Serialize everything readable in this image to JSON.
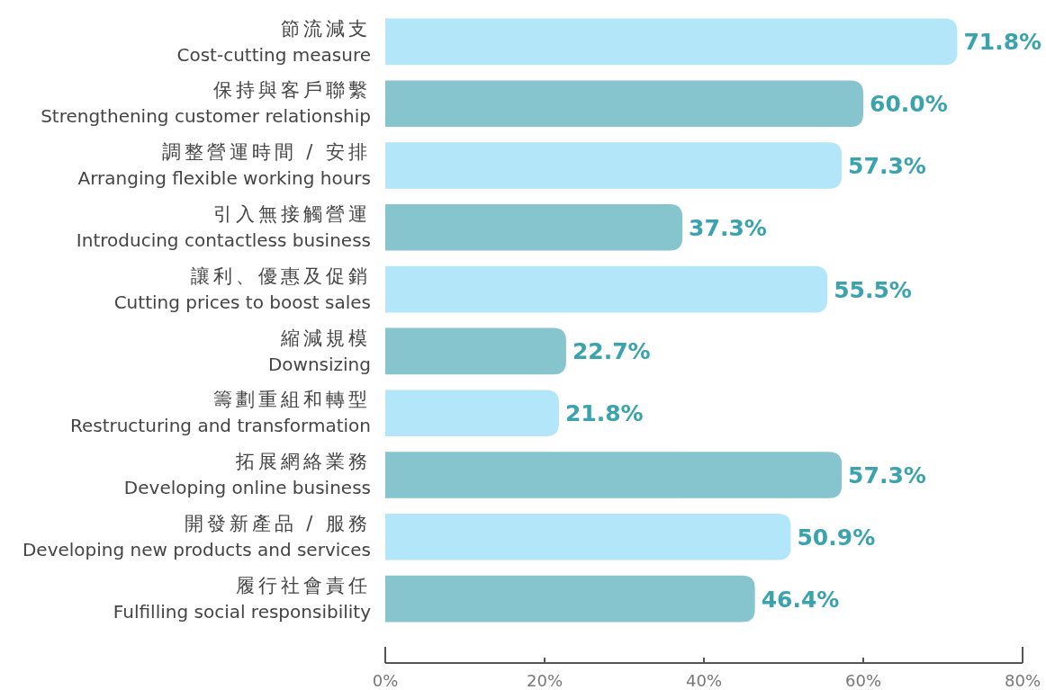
{
  "chart_data": {
    "type": "bar",
    "orientation": "horizontal",
    "categories": [
      "節流減支\nCost-cutting measure",
      "保持與客戶聯繫\nStrengthening customer relationship",
      "調整營運時間 / 安排\nArranging flexible working hours",
      "引入無接觸營運\nIntroducing contactless business",
      "讓利、優惠及促銷\nCutting prices to boost sales",
      "縮減規模\nDownsizing",
      "籌劃重組和轉型\nRestructuring and transformation",
      "拓展網絡業務\nDeveloping online business",
      "開發新產品 / 服務\nDeveloping new products and services",
      "履行社會責任\nFulfilling social responsibility"
    ],
    "values": [
      71.8,
      60.0,
      57.3,
      37.3,
      55.5,
      22.7,
      21.8,
      57.3,
      50.9,
      46.4
    ],
    "value_labels": [
      "71.8%",
      "60.0%",
      "57.3%",
      "37.3%",
      "55.5%",
      "22.7%",
      "21.8%",
      "57.3%",
      "50.9%",
      "46.4%"
    ],
    "colors": [
      "#b3e6f9",
      "#86c4ce",
      "#b3e6f9",
      "#86c4ce",
      "#b3e6f9",
      "#86c4ce",
      "#b3e6f9",
      "#86c4ce",
      "#b3e6f9",
      "#86c4ce"
    ],
    "xlim": [
      0,
      80
    ],
    "xticks": [
      {
        "value": 0,
        "label": "0%"
      },
      {
        "value": 20,
        "label": "20%"
      },
      {
        "value": 40,
        "label": "40%"
      },
      {
        "value": 60,
        "label": "60%"
      },
      {
        "value": 80,
        "label": "80%"
      }
    ],
    "grid": false
  }
}
